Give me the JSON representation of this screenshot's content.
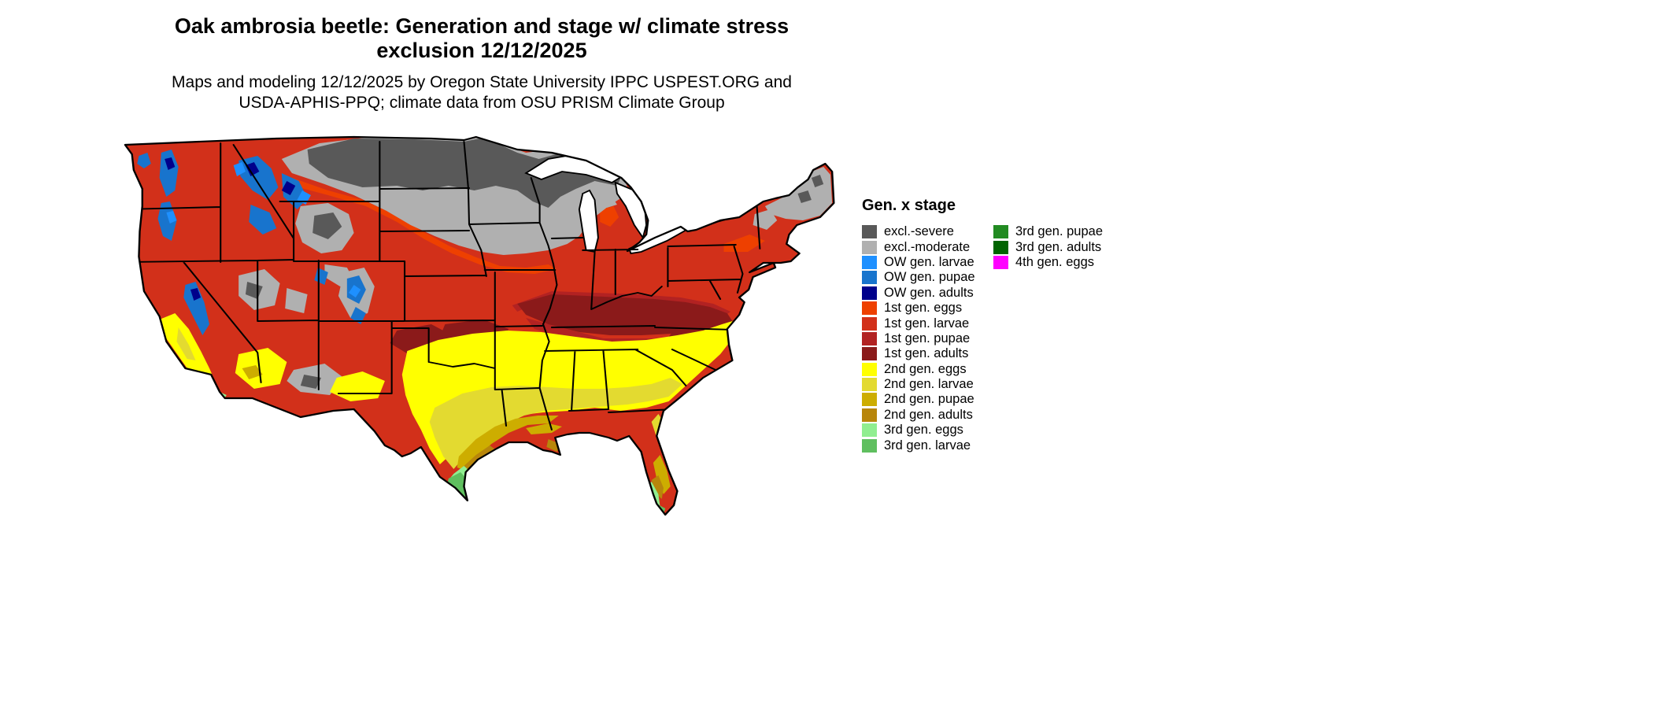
{
  "title": {
    "line1": "Oak ambrosia beetle: Generation and stage w/ climate stress",
    "line2": "exclusion 12/12/2025"
  },
  "subtitle": {
    "line1": "Maps and modeling 12/12/2025 by Oregon State University IPPC USPEST.ORG and",
    "line2": "USDA-APHIS-PPQ; climate data from OSU PRISM Climate Group"
  },
  "map": {
    "region": "Contiguous United States",
    "border_color": "#000000",
    "water_color": "#ffffff"
  },
  "legend": {
    "title": "Gen. x stage",
    "column1": [
      {
        "label": "excl.-severe",
        "color": "#595959"
      },
      {
        "label": "excl.-moderate",
        "color": "#b0b0b0"
      },
      {
        "label": "OW gen. larvae",
        "color": "#1e90ff"
      },
      {
        "label": "OW gen. pupae",
        "color": "#1874cd"
      },
      {
        "label": "OW gen. adults",
        "color": "#00008b"
      },
      {
        "label": "1st gen. eggs",
        "color": "#ee4000"
      },
      {
        "label": "1st gen. larvae",
        "color": "#d2301a"
      },
      {
        "label": "1st gen. pupae",
        "color": "#b22222"
      },
      {
        "label": "1st gen. adults",
        "color": "#8b1a1a"
      },
      {
        "label": "2nd gen. eggs",
        "color": "#ffff00"
      },
      {
        "label": "2nd gen. larvae",
        "color": "#e3da30"
      },
      {
        "label": "2nd gen. pupae",
        "color": "#cdad00"
      },
      {
        "label": "2nd gen. adults",
        "color": "#b8860b"
      },
      {
        "label": "3rd gen. eggs",
        "color": "#90ee90"
      },
      {
        "label": "3rd gen. larvae",
        "color": "#5fbf5f"
      }
    ],
    "column2": [
      {
        "label": "3rd gen. pupae",
        "color": "#228b22"
      },
      {
        "label": "3rd gen. adults",
        "color": "#006400"
      },
      {
        "label": "4th gen. eggs",
        "color": "#ff00ff"
      }
    ]
  }
}
